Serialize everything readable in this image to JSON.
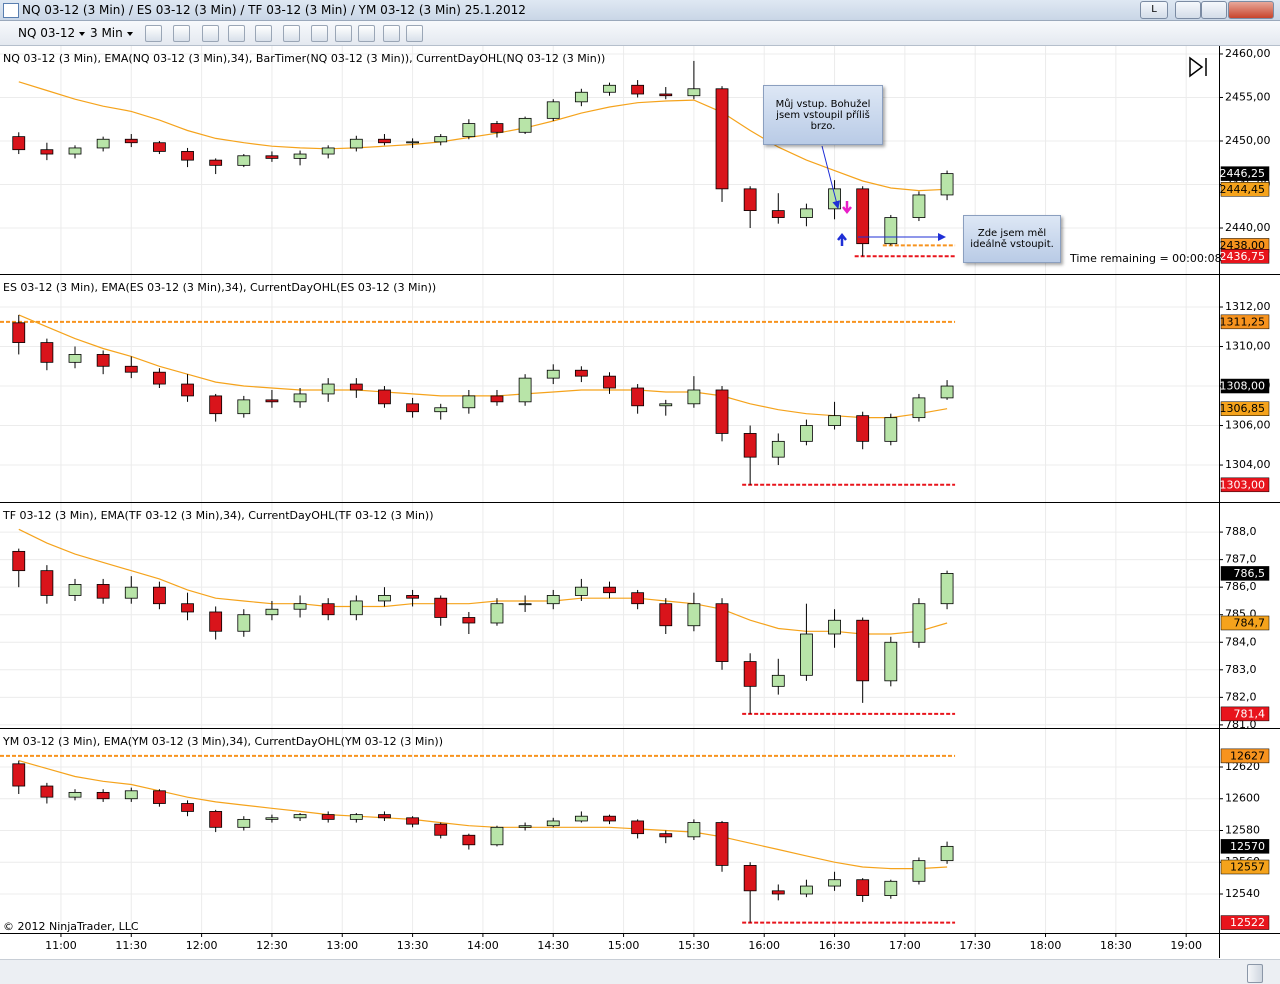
{
  "window": {
    "title": "NQ 03-12 (3 Min) / ES 03-12 (3 Min) / TF 03-12 (3 Min) / YM 03-12 (3 Min)  25.1.2012",
    "instrument": "NQ 03-12",
    "period": "3 Min",
    "button": "L",
    "copyright": "© 2012 NinjaTrader, LLC"
  },
  "chart_data": [
    {
      "type": "candlestick",
      "title": "NQ 03-12 (3 Min), EMA(NQ 03-12 (3 Min),34), BarTimer(NQ 03-12 (3 Min)), CurrentDayOHL(NQ 03-12 (3 Min))",
      "xlim": [
        "10:34",
        "19:14"
      ],
      "x": [
        "10:42",
        "10:54",
        "11:06",
        "11:18",
        "11:30",
        "11:42",
        "11:54",
        "12:06",
        "12:18",
        "12:30",
        "12:42",
        "12:54",
        "13:06",
        "13:18",
        "13:30",
        "13:42",
        "13:54",
        "14:06",
        "14:18",
        "14:30",
        "14:42",
        "14:54",
        "15:06",
        "15:18",
        "15:30",
        "15:42",
        "15:54",
        "16:06",
        "16:18",
        "16:30",
        "16:42",
        "16:54",
        "17:06",
        "17:18"
      ],
      "open": [
        2450.5,
        2449,
        2448.5,
        2449.2,
        2450.2,
        2449.8,
        2448.8,
        2447.8,
        2447.2,
        2448.3,
        2448,
        2448.5,
        2449.2,
        2450.2,
        2449.8,
        2449.9,
        2450.5,
        2452,
        2451,
        2452.6,
        2454.5,
        2455.6,
        2456.4,
        2455.4,
        2455.2,
        2456,
        2444.5,
        2442,
        2441.2,
        2442.2,
        2444.5,
        2438.2,
        2441.2,
        2443.8
      ],
      "high": [
        2451,
        2449.8,
        2449.5,
        2450.5,
        2450.8,
        2450,
        2449.2,
        2448,
        2448.5,
        2448.8,
        2448.9,
        2449.5,
        2450.6,
        2450.8,
        2450.3,
        2450.8,
        2452.5,
        2452.3,
        2452.8,
        2454.8,
        2456,
        2456.7,
        2457,
        2456.2,
        2459.2,
        2456.3,
        2444.8,
        2444,
        2442.8,
        2445.5,
        2444.8,
        2441.5,
        2444.2,
        2446.6
      ],
      "low": [
        2448.5,
        2447.8,
        2448,
        2448.8,
        2449.3,
        2448.5,
        2447,
        2446.2,
        2447,
        2447.6,
        2447.2,
        2448,
        2448.8,
        2449.5,
        2449.2,
        2449.5,
        2450.2,
        2450.4,
        2450.8,
        2452.3,
        2454,
        2455.2,
        2455,
        2454.8,
        2454.8,
        2443,
        2440,
        2440.5,
        2440.2,
        2441,
        2436.75,
        2438,
        2440.8,
        2443.2
      ],
      "close": [
        2449,
        2448.5,
        2449.2,
        2450.2,
        2449.8,
        2448.8,
        2447.8,
        2447.2,
        2448.3,
        2448,
        2448.5,
        2449.2,
        2450.2,
        2449.8,
        2449.9,
        2450.5,
        2452,
        2451,
        2452.6,
        2454.5,
        2455.6,
        2456.4,
        2455.4,
        2455.2,
        2456,
        2444.5,
        2442,
        2441.2,
        2442.2,
        2444.5,
        2438.2,
        2441.2,
        2443.8,
        2446.25
      ],
      "last_close_label": "2446,25",
      "up_color": "#b8e4a8",
      "down_color": "#d9141b",
      "ema": {
        "color": "#f5a31c",
        "label": "2444,45",
        "values": [
          2456.8,
          2455.8,
          2454.8,
          2454,
          2453.4,
          2452.4,
          2451.2,
          2450.3,
          2449.8,
          2449.4,
          2449.2,
          2449.1,
          2449.2,
          2449.4,
          2449.6,
          2449.9,
          2450.4,
          2450.9,
          2451.5,
          2452.3,
          2453.2,
          2453.9,
          2454.4,
          2454.6,
          2454.7,
          2453.3,
          2451.2,
          2449.3,
          2447.8,
          2446.6,
          2445.4,
          2444.6,
          2444.3,
          2444.45
        ]
      },
      "levels": [
        {
          "value": 2438,
          "label": "2438,00",
          "color": "#f7931e"
        },
        {
          "value": 2436.75,
          "label": "2436,75",
          "color": "#e8141c"
        }
      ],
      "ylim": [
        2434.83,
        2460.8
      ],
      "yticks": [
        {
          "value": 2440,
          "label": "2440,00"
        },
        {
          "value": 2445,
          "label": "2445,00"
        },
        {
          "value": 2450,
          "label": "2450,00"
        },
        {
          "value": 2455,
          "label": "2455,00"
        },
        {
          "value": 2460,
          "label": "2460,00"
        }
      ],
      "grid": true,
      "annotations": [
        "Můj vstup. Bohužel jsem vstoupil příliš brzo.",
        "Zde jsem měl ideálně vstoupit.",
        "Time remaining = 00:00:08"
      ]
    },
    {
      "type": "candlestick",
      "title": "ES 03-12 (3 Min), EMA(ES 03-12 (3 Min),34), CurrentDayOHL(ES 03-12 (3 Min))",
      "xlim": [
        "10:34",
        "19:14"
      ],
      "x": [
        "10:42",
        "10:54",
        "11:06",
        "11:18",
        "11:30",
        "11:42",
        "11:54",
        "12:06",
        "12:18",
        "12:30",
        "12:42",
        "12:54",
        "13:06",
        "13:18",
        "13:30",
        "13:42",
        "13:54",
        "14:06",
        "14:18",
        "14:30",
        "14:42",
        "14:54",
        "15:06",
        "15:18",
        "15:30",
        "15:42",
        "15:54",
        "16:06",
        "16:18",
        "16:30",
        "16:42",
        "16:54",
        "17:06",
        "17:18"
      ],
      "open": [
        1311.2,
        1310.2,
        1309.2,
        1309.6,
        1309,
        1308.7,
        1308.1,
        1307.5,
        1306.6,
        1307.3,
        1307.2,
        1307.6,
        1308.1,
        1307.8,
        1307.1,
        1306.7,
        1306.9,
        1307.5,
        1307.2,
        1308.4,
        1308.8,
        1308.5,
        1307.9,
        1307,
        1307.1,
        1307.8,
        1305.6,
        1304.4,
        1305.2,
        1306,
        1306.5,
        1305.2,
        1306.4,
        1307.4
      ],
      "high": [
        1311.6,
        1310.4,
        1310,
        1309.8,
        1309.5,
        1308.9,
        1308.6,
        1307.6,
        1307.5,
        1307.8,
        1307.9,
        1308.4,
        1308.4,
        1308,
        1307.4,
        1307.1,
        1307.8,
        1307.8,
        1308.6,
        1309.1,
        1309,
        1308.7,
        1308.1,
        1307.3,
        1308.5,
        1308,
        1306,
        1305.6,
        1306.3,
        1307.2,
        1306.7,
        1306.6,
        1307.6,
        1308.3
      ],
      "low": [
        1309.6,
        1308.8,
        1308.9,
        1308.6,
        1308.4,
        1307.9,
        1307.2,
        1306.2,
        1306.4,
        1306.9,
        1306.9,
        1307.2,
        1307.4,
        1306.9,
        1306.4,
        1306.3,
        1306.6,
        1307,
        1307,
        1308.1,
        1308.2,
        1307.6,
        1306.6,
        1306.5,
        1306.9,
        1305.2,
        1303,
        1304,
        1305,
        1305.8,
        1304.8,
        1305,
        1306.2,
        1307.3
      ],
      "close": [
        1310.2,
        1309.2,
        1309.6,
        1309,
        1308.7,
        1308.1,
        1307.5,
        1306.6,
        1307.3,
        1307.2,
        1307.6,
        1308.1,
        1307.8,
        1307.1,
        1306.7,
        1306.9,
        1307.5,
        1307.2,
        1308.4,
        1308.8,
        1308.5,
        1307.9,
        1307,
        1307.1,
        1307.8,
        1305.6,
        1304.4,
        1305.2,
        1306,
        1306.5,
        1305.2,
        1306.4,
        1307.4,
        1308
      ],
      "last_close_label": "1308,00",
      "up_color": "#b8e4a8",
      "down_color": "#d9141b",
      "ema": {
        "color": "#f5a31c",
        "label": "1306,85",
        "values": [
          1311.6,
          1311,
          1310.4,
          1309.9,
          1309.5,
          1309,
          1308.6,
          1308.2,
          1308,
          1307.9,
          1307.8,
          1307.8,
          1307.8,
          1307.7,
          1307.6,
          1307.5,
          1307.5,
          1307.5,
          1307.6,
          1307.7,
          1307.8,
          1307.8,
          1307.8,
          1307.7,
          1307.7,
          1307.5,
          1307.1,
          1306.8,
          1306.6,
          1306.5,
          1306.4,
          1306.4,
          1306.6,
          1306.85
        ]
      },
      "levels": [
        {
          "value": 1311.25,
          "label": "1311,25",
          "color": "#f7931e"
        },
        {
          "value": 1303,
          "label": "1303,00",
          "color": "#e8141c"
        }
      ],
      "ylim": [
        1302.18,
        1313.57
      ],
      "yticks": [
        {
          "value": 1304,
          "label": "1304,00"
        },
        {
          "value": 1306,
          "label": "1306,00"
        },
        {
          "value": 1308,
          "label": "1308,00"
        },
        {
          "value": 1310,
          "label": "1310,00"
        },
        {
          "value": 1312,
          "label": "1312,00"
        }
      ],
      "grid": true
    },
    {
      "type": "candlestick",
      "title": "TF 03-12 (3 Min), EMA(TF 03-12 (3 Min),34), CurrentDayOHL(TF 03-12 (3 Min))",
      "xlim": [
        "10:34",
        "19:14"
      ],
      "x": [
        "10:42",
        "10:54",
        "11:06",
        "11:18",
        "11:30",
        "11:42",
        "11:54",
        "12:06",
        "12:18",
        "12:30",
        "12:42",
        "12:54",
        "13:06",
        "13:18",
        "13:30",
        "13:42",
        "13:54",
        "14:06",
        "14:18",
        "14:30",
        "14:42",
        "14:54",
        "15:06",
        "15:18",
        "15:30",
        "15:42",
        "15:54",
        "16:06",
        "16:18",
        "16:30",
        "16:42",
        "16:54",
        "17:06",
        "17:18"
      ],
      "open": [
        787.3,
        786.6,
        785.7,
        786.1,
        785.6,
        786,
        785.4,
        785.1,
        784.4,
        785,
        785.2,
        785.4,
        785,
        785.5,
        785.7,
        785.6,
        784.9,
        784.7,
        785.4,
        785.4,
        785.7,
        786,
        785.8,
        785.4,
        784.6,
        785.4,
        783.3,
        782.4,
        782.8,
        784.3,
        784.8,
        782.6,
        784,
        785.4
      ],
      "high": [
        787.4,
        786.8,
        786.3,
        786.3,
        786.4,
        786.2,
        785.8,
        785.3,
        785.2,
        785.5,
        785.7,
        785.6,
        785.7,
        786,
        785.9,
        785.7,
        785.1,
        785.6,
        785.7,
        785.9,
        786.3,
        786.2,
        785.9,
        785.6,
        785.8,
        785.6,
        783.6,
        783.4,
        785.4,
        785.2,
        784.9,
        784.2,
        785.6,
        786.6
      ],
      "low": [
        786,
        785.4,
        785.5,
        785.4,
        785.4,
        785.2,
        784.8,
        784.1,
        784.2,
        784.8,
        784.9,
        784.8,
        784.8,
        785.3,
        785.3,
        784.6,
        784.3,
        784.6,
        785.1,
        785.2,
        785.5,
        785.6,
        785.2,
        784.3,
        784.4,
        783,
        781.4,
        782.1,
        782.6,
        783.8,
        781.8,
        782.4,
        783.8,
        785.2
      ],
      "close": [
        786.6,
        785.7,
        786.1,
        785.6,
        786,
        785.4,
        785.1,
        784.4,
        785,
        785.2,
        785.4,
        785,
        785.5,
        785.7,
        785.6,
        784.9,
        784.7,
        785.4,
        785.4,
        785.7,
        786,
        785.8,
        785.4,
        784.6,
        785.4,
        783.3,
        782.4,
        782.8,
        784.3,
        784.8,
        782.6,
        784,
        785.4,
        786.5
      ],
      "last_close_label": "786,5",
      "up_color": "#b8e4a8",
      "down_color": "#d9141b",
      "ema": {
        "color": "#f5a31c",
        "label": "784,7",
        "values": [
          788.1,
          787.6,
          787.2,
          786.9,
          786.6,
          786.3,
          785.9,
          785.6,
          785.5,
          785.4,
          785.4,
          785.3,
          785.3,
          785.3,
          785.4,
          785.4,
          785.4,
          785.5,
          785.5,
          785.5,
          785.6,
          785.6,
          785.6,
          785.5,
          785.4,
          785.2,
          784.8,
          784.5,
          784.4,
          784.4,
          784.3,
          784.3,
          784.4,
          784.7
        ]
      },
      "levels": [
        {
          "value": 781.4,
          "label": "781,4",
          "color": "#e8141c"
        }
      ],
      "ylim": [
        780.96,
        789.02
      ],
      "yticks": [
        {
          "value": 781,
          "label": "781,0"
        },
        {
          "value": 782,
          "label": "782,0"
        },
        {
          "value": 783,
          "label": "783,0"
        },
        {
          "value": 784,
          "label": "784,0"
        },
        {
          "value": 785,
          "label": "785,0"
        },
        {
          "value": 786,
          "label": "786,0"
        },
        {
          "value": 787,
          "label": "787,0"
        },
        {
          "value": 788,
          "label": "788,0"
        }
      ],
      "grid": true
    },
    {
      "type": "candlestick",
      "title": "YM 03-12 (3 Min), EMA(YM 03-12 (3 Min),34), CurrentDayOHL(YM 03-12 (3 Min))",
      "xlim": [
        "10:34",
        "19:14"
      ],
      "x": [
        "10:42",
        "10:54",
        "11:06",
        "11:18",
        "11:30",
        "11:42",
        "11:54",
        "12:06",
        "12:18",
        "12:30",
        "12:42",
        "12:54",
        "13:06",
        "13:18",
        "13:30",
        "13:42",
        "13:54",
        "14:06",
        "14:18",
        "14:30",
        "14:42",
        "14:54",
        "15:06",
        "15:18",
        "15:30",
        "15:42",
        "15:54",
        "16:06",
        "16:18",
        "16:30",
        "16:42",
        "16:54",
        "17:06",
        "17:18"
      ],
      "open": [
        12622,
        12608,
        12601,
        12604,
        12600,
        12605,
        12597,
        12592,
        12582,
        12587,
        12588,
        12590,
        12587,
        12590,
        12588,
        12584,
        12577,
        12571,
        12582,
        12583,
        12586,
        12589,
        12586,
        12578,
        12576,
        12585,
        12558,
        12542,
        12540,
        12545,
        12549,
        12539,
        12548,
        12561
      ],
      "high": [
        12624,
        12610,
        12606,
        12606,
        12607,
        12606,
        12599,
        12593,
        12589,
        12590,
        12591,
        12592,
        12591,
        12592,
        12589,
        12585,
        12578,
        12583,
        12585,
        12588,
        12592,
        12590,
        12587,
        12580,
        12587,
        12586,
        12560,
        12546,
        12549,
        12554,
        12550,
        12549,
        12563,
        12573
      ],
      "low": [
        12603,
        12597,
        12599,
        12598,
        12598,
        12595,
        12589,
        12579,
        12580,
        12585,
        12586,
        12585,
        12585,
        12586,
        12582,
        12575,
        12568,
        12570,
        12580,
        12582,
        12585,
        12584,
        12575,
        12572,
        12574,
        12554,
        12522,
        12536,
        12538,
        12542,
        12535,
        12537,
        12546,
        12559
      ],
      "close": [
        12608,
        12601,
        12604,
        12600,
        12605,
        12597,
        12592,
        12582,
        12587,
        12588,
        12590,
        12587,
        12590,
        12588,
        12584,
        12577,
        12571,
        12582,
        12583,
        12586,
        12589,
        12586,
        12578,
        12576,
        12585,
        12558,
        12542,
        12540,
        12545,
        12549,
        12539,
        12548,
        12561,
        12570
      ],
      "last_close_label": "12570",
      "up_color": "#b8e4a8",
      "down_color": "#d9141b",
      "ema": {
        "color": "#f5a31c",
        "label": "12557",
        "values": [
          12624,
          12619,
          12614,
          12611,
          12609,
          12605,
          12601,
          12598,
          12596,
          12594,
          12592,
          12590,
          12589,
          12588,
          12587,
          12585,
          12583,
          12582,
          12582,
          12582,
          12582,
          12582,
          12581,
          12580,
          12579,
          12576,
          12572,
          12568,
          12564,
          12560,
          12557,
          12556,
          12556,
          12557
        ]
      },
      "levels": [
        {
          "value": 12627,
          "label": "12627",
          "color": "#f7931e"
        },
        {
          "value": 12522,
          "label": "12522",
          "color": "#e8141c"
        }
      ],
      "ylim": [
        12516.06,
        12643.3
      ],
      "yticks": [
        12540,
        12560,
        12580,
        12600,
        12620
      ],
      "grid": true,
      "xticks": [
        "11:00",
        "11:30",
        "12:00",
        "12:30",
        "13:00",
        "13:30",
        "14:00",
        "14:30",
        "15:00",
        "15:30",
        "16:00",
        "16:30",
        "17:00",
        "17:30",
        "18:00",
        "18:30",
        "19:00"
      ]
    }
  ]
}
